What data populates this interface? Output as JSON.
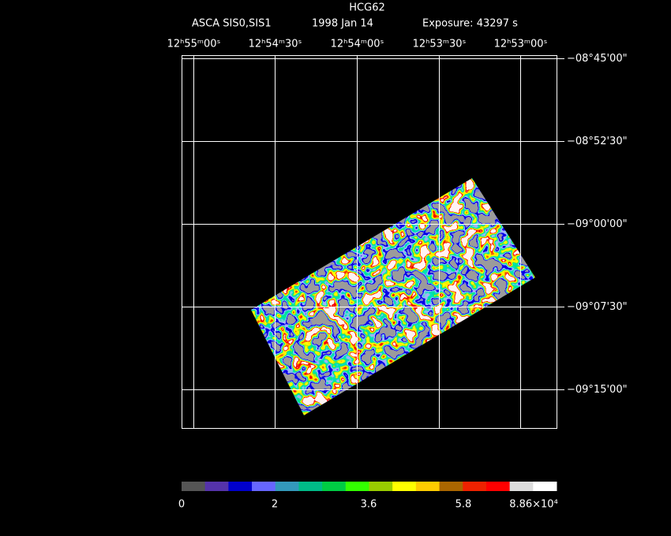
{
  "header": {
    "title": "HCG62",
    "instrument": "ASCA SIS0,SIS1",
    "date": "1998 Jan 14",
    "exposure": "Exposure: 43297 s"
  },
  "ra_labels": [
    "12ʰ55ᵐ00ˢ",
    "12ʰ54ᵐ30ˢ",
    "12ʰ54ᵐ00ˢ",
    "12ʰ53ᵐ30ˢ",
    "12ʰ53ᵐ00ˢ"
  ],
  "dec_labels": [
    "−08°45'00\"",
    "−08°52'30\"",
    "−09°00'00\"",
    "−09°07'30\"",
    "−09°15'00\""
  ],
  "colorbar_labels": [
    "0",
    "2",
    "3.6",
    "5.8",
    "8.86×10⁴"
  ]
}
